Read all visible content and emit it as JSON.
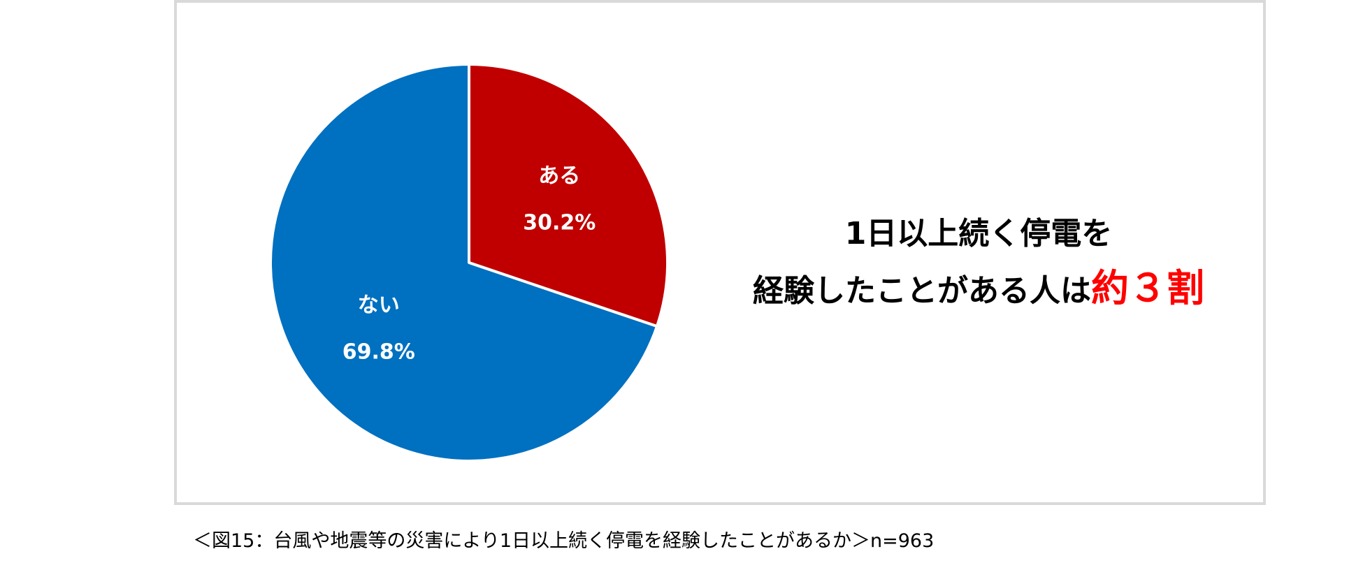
{
  "chart_data": {
    "type": "pie",
    "slices": [
      {
        "label": "ある",
        "value": 30.2,
        "value_label": "30.2%",
        "color": "#c00000"
      },
      {
        "label": "ない",
        "value": 69.8,
        "value_label": "69.8%",
        "color": "#0070c0"
      }
    ],
    "start_angle": "12 o'clock",
    "direction": "clockwise"
  },
  "headline": {
    "line1": "1日以上続く停電を",
    "line2_prefix": "経験したことがある人は",
    "line2_highlight": "約３割",
    "highlight_color": "#ff0000"
  },
  "caption": "＜図15：台風や地震等の災害により1日以上続く停電を経験したことがあるか＞n=963"
}
